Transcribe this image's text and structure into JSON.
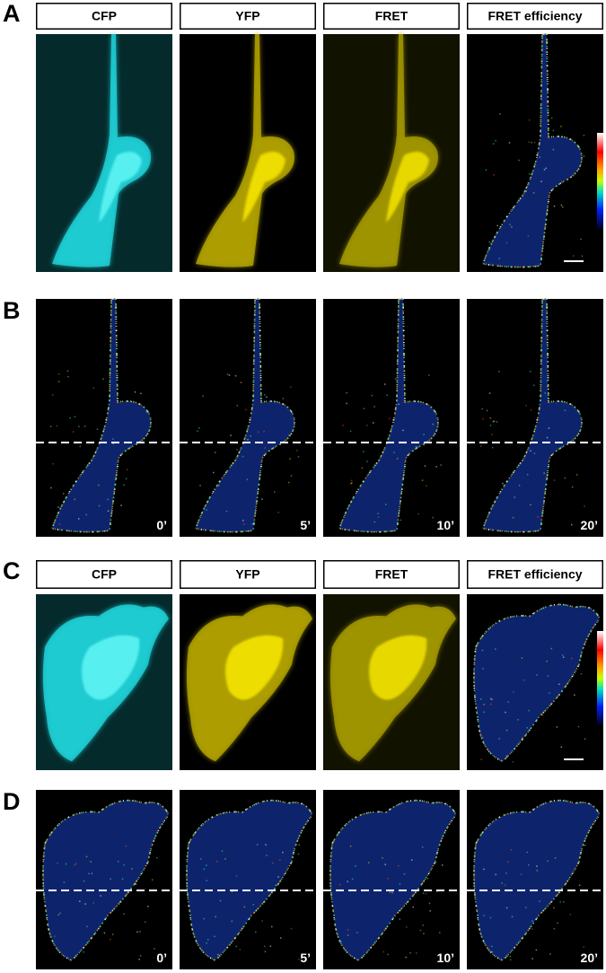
{
  "panels": [
    {
      "label": "A",
      "headers": [
        "CFP",
        "YFP",
        "FRET",
        "FRET efficiency"
      ]
    },
    {
      "label": "B",
      "time_points": [
        "0’",
        "5’",
        "10’",
        "20’"
      ]
    },
    {
      "label": "C",
      "headers": [
        "CFP",
        "YFP",
        "FRET",
        "FRET efficiency"
      ]
    },
    {
      "label": "D",
      "time_points": [
        "0’",
        "5’",
        "10’",
        "20’"
      ]
    }
  ]
}
